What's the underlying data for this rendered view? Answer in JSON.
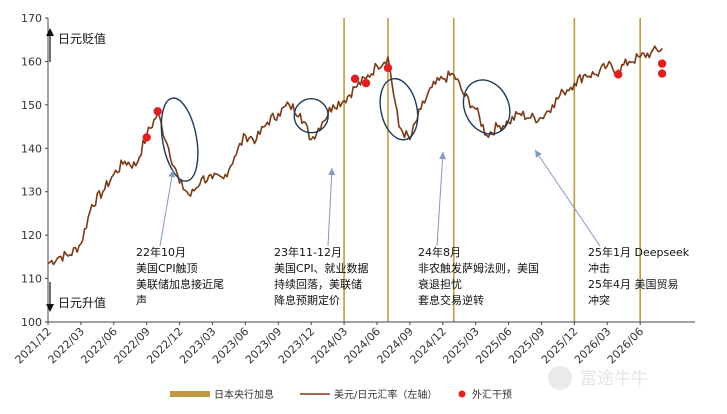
{
  "chart_data": {
    "type": "line",
    "title": "",
    "xlabel": "",
    "ylabel": "",
    "ylim": [
      100,
      170
    ],
    "yticks": [
      100,
      110,
      120,
      130,
      140,
      150,
      160,
      170
    ],
    "xticks": [
      "2021/12",
      "2022/03",
      "2022/06",
      "2022/09",
      "2022/12",
      "2023/03",
      "2023/06",
      "2023/09",
      "2023/12",
      "2024/03",
      "2024/06",
      "2024/09",
      "2024/12",
      "2025/03",
      "2025/06",
      "2025/09",
      "2025/12",
      "2026/03",
      "2026/06"
    ],
    "grid": false,
    "legend_position": "bottom",
    "axis_direction_labels": {
      "up": "日元贬值",
      "down": "日元升值"
    },
    "series": [
      {
        "name": "美元/日元汇率（左轴）",
        "color": "#7b3a16",
        "x": [
          "2021/12",
          "2022/01",
          "2022/02",
          "2022/03",
          "2022/04",
          "2022/05",
          "2022/06",
          "2022/07",
          "2022/08",
          "2022/09",
          "2022/10",
          "2022/11",
          "2022/12",
          "2023/01",
          "2023/02",
          "2023/03",
          "2023/04",
          "2023/05",
          "2023/06",
          "2023/07",
          "2023/08",
          "2023/09",
          "2023/10",
          "2023/11",
          "2023/12",
          "2024/01",
          "2024/02",
          "2024/03",
          "2024/04",
          "2024/05",
          "2024/06",
          "2024/07",
          "2024/08",
          "2024/09",
          "2024/10",
          "2024/11",
          "2024/12",
          "2025/01",
          "2025/02",
          "2025/03",
          "2025/04",
          "2025/05",
          "2025/06",
          "2025/07",
          "2025/08",
          "2025/09",
          "2025/10",
          "2025/11",
          "2025/12",
          "2026/01",
          "2026/02",
          "2026/03",
          "2026/04",
          "2026/05",
          "2026/06",
          "2026/07",
          "2026/08"
        ],
        "values": [
          113.5,
          115,
          115.5,
          118,
          127,
          130,
          134,
          137,
          136,
          143,
          148,
          140,
          132,
          129,
          133,
          133,
          133,
          138,
          143,
          142,
          146,
          148,
          150,
          148,
          142,
          146,
          150,
          151,
          154,
          156,
          159,
          161,
          145,
          142,
          149,
          154,
          156,
          157,
          152,
          149,
          143,
          145,
          146,
          148,
          147,
          147,
          150,
          153,
          155,
          157,
          157,
          159,
          158,
          160,
          161,
          162,
          163
        ]
      }
    ],
    "interventions": {
      "name": "外汇干预",
      "color": "#e02020",
      "points": [
        {
          "x": "2022/09",
          "y": 142.5
        },
        {
          "x": "2022/10",
          "y": 148.5
        },
        {
          "x": "2024/04",
          "y": 156
        },
        {
          "x": "2024/05",
          "y": 155
        },
        {
          "x": "2024/07",
          "y": 158.5
        },
        {
          "x": "2026/04",
          "y": 157
        },
        {
          "x": "2026/08",
          "y": 159.5
        },
        {
          "x": "2026/08",
          "y": 157.2
        }
      ]
    },
    "boj_hikes": {
      "name": "日本央行加息",
      "color": "#c09a43",
      "dates": [
        "2024/03",
        "2024/07",
        "2025/01",
        "2025/12",
        "2026/06"
      ]
    },
    "annotations": [
      {
        "lines": [
          "22年10月",
          "美国CPI触顶",
          "美联储加息接近尾",
          "声"
        ]
      },
      {
        "lines": [
          "23年11-12月",
          "美国CPI、就业数据",
          "持续回落，美联储",
          "降息预期定价"
        ]
      },
      {
        "lines": [
          "24年8月",
          "非农触发萨姆法则，美国",
          "衰退担忧",
          "套息交易逆转"
        ]
      },
      {
        "lines": [
          "25年1月 Deepseek",
          "冲击",
          "25年4月 美国贸易",
          "冲突"
        ]
      }
    ]
  },
  "watermark": {
    "text": "富途牛牛"
  }
}
